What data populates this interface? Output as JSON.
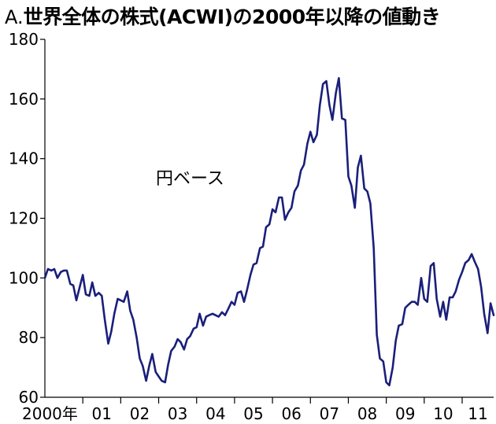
{
  "chart_data": {
    "type": "line",
    "title_prefix": "A.",
    "title": "世界全体の株式(ACWI)の2000年以降の値動き",
    "annotation": "円ベース",
    "xlabel": "",
    "ylabel": "",
    "xlim": [
      2000.0,
      2011.83
    ],
    "ylim": [
      60,
      180
    ],
    "y_ticks": [
      60,
      80,
      100,
      120,
      140,
      160,
      180
    ],
    "x_tick_labels": [
      {
        "label": "2000年",
        "year": 2000
      },
      {
        "label": "01",
        "year": 2001
      },
      {
        "label": "02",
        "year": 2002
      },
      {
        "label": "03",
        "year": 2003
      },
      {
        "label": "04",
        "year": 2004
      },
      {
        "label": "05",
        "year": 2005
      },
      {
        "label": "06",
        "year": 2006
      },
      {
        "label": "07",
        "year": 2007
      },
      {
        "label": "08",
        "year": 2008
      },
      {
        "label": "09",
        "year": 2009
      },
      {
        "label": "10",
        "year": 2010
      },
      {
        "label": "11",
        "year": 2011
      }
    ],
    "grid": false,
    "legend": "none",
    "line_color": "#1a1f7a",
    "series": [
      {
        "x": [
          2000.0,
          2000.08,
          2000.17,
          2000.25,
          2000.33,
          2000.42,
          2000.5,
          2000.58,
          2000.67,
          2000.75,
          2000.83,
          2000.92,
          2001.0,
          2001.08,
          2001.17,
          2001.25,
          2001.33,
          2001.42,
          2001.5,
          2001.58,
          2001.67,
          2001.75,
          2001.83,
          2001.92,
          2002.0,
          2002.08,
          2002.17,
          2002.25,
          2002.33,
          2002.42,
          2002.5,
          2002.58,
          2002.67,
          2002.75,
          2002.83,
          2002.92,
          2003.0,
          2003.08,
          2003.17,
          2003.25,
          2003.33,
          2003.42,
          2003.5,
          2003.58,
          2003.67,
          2003.75,
          2003.83,
          2003.92,
          2004.0,
          2004.08,
          2004.17,
          2004.25,
          2004.33,
          2004.42,
          2004.5,
          2004.58,
          2004.67,
          2004.75,
          2004.83,
          2004.92,
          2005.0,
          2005.08,
          2005.17,
          2005.25,
          2005.33,
          2005.42,
          2005.5,
          2005.58,
          2005.67,
          2005.75,
          2005.83,
          2005.92,
          2006.0,
          2006.08,
          2006.17,
          2006.25,
          2006.33,
          2006.42,
          2006.5,
          2006.58,
          2006.67,
          2006.75,
          2006.83,
          2006.92,
          2007.0,
          2007.08,
          2007.17,
          2007.25,
          2007.33,
          2007.42,
          2007.5,
          2007.58,
          2007.67,
          2007.75,
          2007.83,
          2007.92,
          2008.0,
          2008.08,
          2008.17,
          2008.25,
          2008.33,
          2008.42,
          2008.5,
          2008.58,
          2008.67,
          2008.75,
          2008.83,
          2008.92,
          2009.0,
          2009.08,
          2009.17,
          2009.25,
          2009.33,
          2009.42,
          2009.5,
          2009.58,
          2009.67,
          2009.75,
          2009.83,
          2009.92,
          2010.0,
          2010.08,
          2010.17,
          2010.25,
          2010.33,
          2010.42,
          2010.5,
          2010.58,
          2010.67,
          2010.75,
          2010.83,
          2010.92,
          2011.0,
          2011.08,
          2011.17,
          2011.25,
          2011.33,
          2011.42,
          2011.5,
          2011.58,
          2011.67,
          2011.75,
          2011.83
        ],
        "y": [
          100,
          103,
          102.5,
          103,
          100,
          102,
          102.5,
          102.5,
          98,
          97.5,
          92.5,
          97,
          101,
          94.5,
          94,
          98.5,
          94,
          95,
          94,
          86,
          78,
          82,
          88,
          93,
          92.5,
          92,
          95.5,
          89,
          86,
          80,
          73,
          70.5,
          65.5,
          70.5,
          74.5,
          68.5,
          67,
          65.5,
          65,
          71,
          75.5,
          77,
          79.5,
          78.5,
          76,
          79.5,
          80.5,
          83,
          83.5,
          88,
          84,
          87,
          87.5,
          88,
          87.5,
          87,
          88.5,
          87.5,
          89.5,
          92,
          91,
          95,
          95.5,
          92,
          96,
          101,
          104.5,
          105,
          110,
          110.5,
          117,
          118,
          123,
          122,
          127,
          127,
          119.5,
          122,
          123.5,
          129,
          131,
          136,
          138,
          145,
          149,
          145.5,
          148,
          158,
          165,
          166,
          158,
          153,
          162,
          167,
          153.5,
          153,
          134,
          131,
          123.5,
          137,
          141,
          130,
          129,
          125,
          110,
          81,
          73,
          72,
          65,
          64,
          70,
          79,
          84,
          84.5,
          90,
          91,
          92,
          92,
          91,
          100,
          93,
          92,
          104,
          105,
          93,
          87,
          92,
          86,
          93.5,
          93.5,
          95.5,
          99.5,
          102,
          105,
          106,
          108,
          105.5,
          103,
          97,
          88,
          81.5,
          91.5,
          87.5
        ]
      }
    ]
  }
}
